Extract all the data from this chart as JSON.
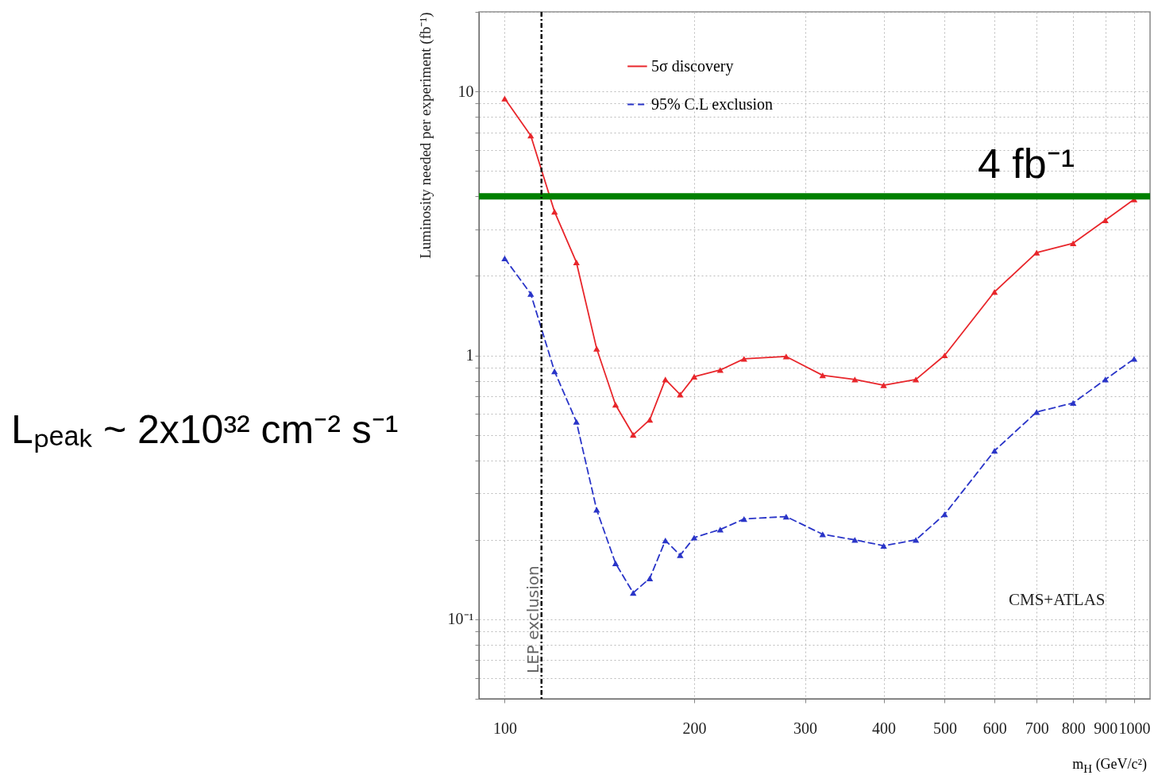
{
  "chart_data": {
    "type": "line",
    "xlabel": "m$_{H}$ (GeV/c²)",
    "ylabel": "Luminosity needed per experiment (fb⁻¹)",
    "x": [
      100,
      110,
      120,
      130,
      140,
      150,
      160,
      170,
      180,
      190,
      200,
      220,
      240,
      280,
      320,
      360,
      400,
      450,
      500,
      600,
      700,
      800,
      900,
      1000
    ],
    "series": [
      {
        "name": "5σ discovery",
        "color": "#e8262b",
        "line_style": "solid",
        "values": [
          9.4,
          6.8,
          3.5,
          2.25,
          1.06,
          0.65,
          0.5,
          0.57,
          0.81,
          0.71,
          0.83,
          0.88,
          0.97,
          0.99,
          0.84,
          0.81,
          0.77,
          0.81,
          1.0,
          1.74,
          2.45,
          2.66,
          3.25,
          3.9
        ]
      },
      {
        "name": "95% C.L exclusion",
        "color": "#2a35c8",
        "line_style": "dashed",
        "values": [
          2.33,
          1.71,
          0.87,
          0.56,
          0.26,
          0.163,
          0.126,
          0.143,
          0.199,
          0.175,
          0.204,
          0.219,
          0.24,
          0.245,
          0.21,
          0.2,
          0.19,
          0.2,
          0.25,
          0.435,
          0.61,
          0.66,
          0.81,
          0.97
        ]
      }
    ],
    "marker": "triangle",
    "log": "xy",
    "xlim": [
      91,
      1060
    ],
    "ylim": [
      0.05,
      20
    ],
    "xticks": [
      100,
      200,
      300,
      400,
      500,
      600,
      700,
      800,
      900,
      1000
    ],
    "yticks": [
      {
        "value": 0.05,
        "label": null
      },
      {
        "value": 0.06,
        "label": null
      },
      {
        "value": 0.07,
        "label": null
      },
      {
        "value": 0.08,
        "label": null
      },
      {
        "value": 0.09,
        "label": null
      },
      {
        "value": 0.1,
        "label": "10⁻¹"
      },
      {
        "value": 0.2,
        "label": null
      },
      {
        "value": 0.3,
        "label": null
      },
      {
        "value": 0.4,
        "label": null
      },
      {
        "value": 0.5,
        "label": null
      },
      {
        "value": 0.6,
        "label": null
      },
      {
        "value": 0.7,
        "label": null
      },
      {
        "value": 0.8,
        "label": null
      },
      {
        "value": 0.9,
        "label": null
      },
      1,
      {
        "value": 2,
        "label": null
      },
      {
        "value": 3,
        "label": null
      },
      {
        "value": 4,
        "label": null
      },
      {
        "value": 5,
        "label": null
      },
      {
        "value": 6,
        "label": null
      },
      {
        "value": 7,
        "label": null
      },
      {
        "value": 8,
        "label": null
      },
      {
        "value": 9,
        "label": null
      },
      10,
      {
        "value": 20,
        "label": null
      }
    ],
    "grid": true,
    "legend": "top",
    "ref_lines": [
      {
        "axis": "y",
        "value": 4,
        "label": "4 fb⁻¹",
        "color": "#008000",
        "line_style": "solid"
      },
      {
        "axis": "x",
        "value": 114.4,
        "label": "LEP exclusion",
        "color": "#000000",
        "line_style": "dashed"
      }
    ],
    "annotations": [
      "Lₚₑₐₖ ~ 2x10³² cm⁻² s⁻¹",
      "CMS+ATLAS"
    ]
  }
}
